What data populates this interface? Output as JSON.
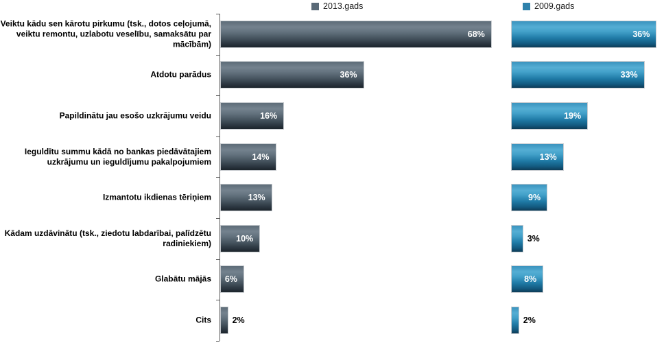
{
  "legend": [
    {
      "label": "2013.gads",
      "color": "#5a6a77"
    },
    {
      "label": "2009.gads",
      "color": "#2e81ab"
    }
  ],
  "chart_data": {
    "type": "bar",
    "orientation": "horizontal",
    "unit": "%",
    "title": "",
    "xlabel": "",
    "ylabel": "",
    "xlim": [
      0,
      70
    ],
    "grid": false,
    "legend_position": "top",
    "layout": "two side-by-side horizontal bar panels sharing category labels",
    "categories": [
      "Veiktu kādu sen kārotu pirkumu (tsk., dotos ceļojumā, veiktu remontu, uzlabotu veselību, samaksātu par mācībām)",
      "Atdotu parādus",
      "Papildinātu jau esošo uzkrājumu veidu",
      "Ieguldītu summu kādā no bankas piedāvātajiem uzkrājumu un ieguldījumu pakalpojumiem",
      "Izmantotu ikdienas tēriņiem",
      "Kādam uzdāvinātu (tsk., ziedotu labdarībai, palīdzētu radiniekiem)",
      "Glabātu mājās",
      "Cits"
    ],
    "series": [
      {
        "name": "2013.gads",
        "color": "#5a6a77",
        "values": [
          68,
          36,
          16,
          14,
          13,
          10,
          6,
          2
        ],
        "labels": [
          "68%",
          "36%",
          "16%",
          "14%",
          "13%",
          "10%",
          "6%",
          "2%"
        ]
      },
      {
        "name": "2009.gads",
        "color": "#2e81ab",
        "values": [
          36,
          33,
          19,
          13,
          9,
          3,
          8,
          2
        ],
        "labels": [
          "36%",
          "33%",
          "19%",
          "13%",
          "9%",
          "3%",
          "8%",
          "2%"
        ]
      }
    ]
  }
}
